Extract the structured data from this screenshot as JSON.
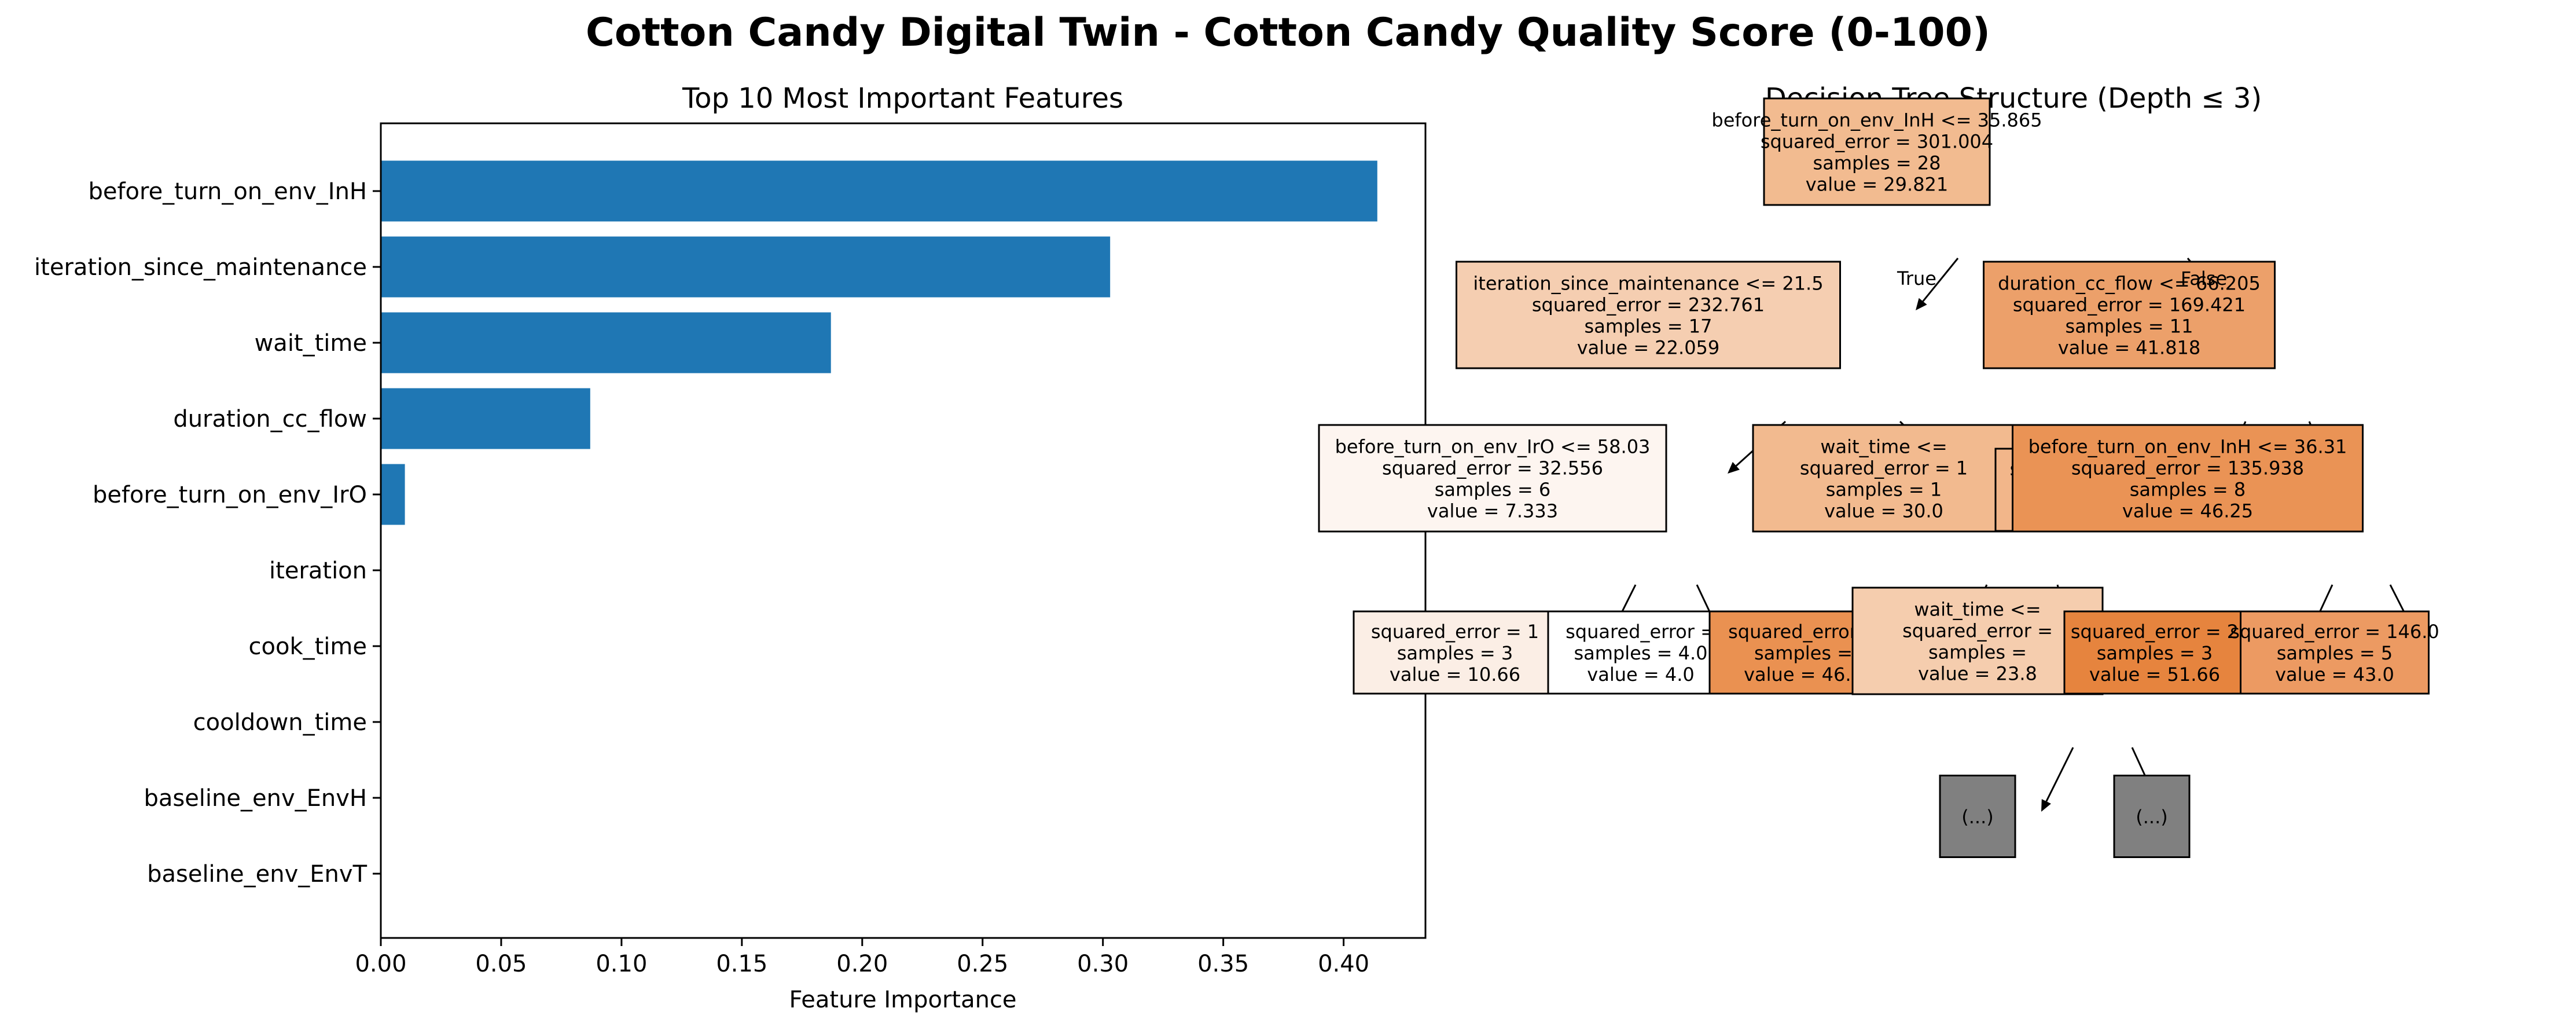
{
  "title": "Cotton Candy Digital Twin - Cotton Candy Quality Score (0-100)",
  "chart_data": [
    {
      "type": "bar",
      "orientation": "horizontal",
      "title": "Top 10 Most Important Features",
      "xlabel": "Feature Importance",
      "ylabel": "",
      "xlim": [
        0,
        0.434
      ],
      "xticks": [
        "0.00",
        "0.05",
        "0.10",
        "0.15",
        "0.20",
        "0.25",
        "0.30",
        "0.35",
        "0.40"
      ],
      "categories": [
        "before_turn_on_env_InH",
        "iteration_since_maintenance",
        "wait_time",
        "duration_cc_flow",
        "before_turn_on_env_IrO",
        "iteration",
        "cook_time",
        "cooldown_time",
        "baseline_env_EnvH",
        "baseline_env_EnvT"
      ],
      "values": [
        0.414,
        0.303,
        0.187,
        0.087,
        0.01,
        0,
        0,
        0,
        0,
        0
      ],
      "bar_color": "#1f77b4",
      "grid": false
    },
    {
      "type": "tree",
      "title": "Decision Tree Structure (Depth ≤ 3)",
      "edge_labels": {
        "true": "True",
        "false": "False"
      },
      "nodes": [
        {
          "id": "n0",
          "lines": [
            "before_turn_on_env_InH <= 35.865",
            "squared_error = 301.004",
            "samples = 28",
            "value = 29.821"
          ],
          "color": "#f2bb90"
        },
        {
          "id": "n1",
          "lines": [
            "iteration_since_maintenance <= 21.5",
            "squared_error = 232.761",
            "samples = 17",
            "value = 22.059"
          ],
          "color": "#f5ceb1"
        },
        {
          "id": "n2",
          "lines": [
            "duration_cc_flow <= 66.205",
            "squared_error = 169.421",
            "samples = 11",
            "value = 41.818"
          ],
          "color": "#eca06a"
        },
        {
          "id": "n3",
          "lines": [
            "before_turn_on_env_IrO <= 58.03",
            "squared_error = 32.556",
            "samples = 6",
            "value = 7.333"
          ],
          "color": "#fdf5f0"
        },
        {
          "id": "n4",
          "lines": [
            "wait_time <=",
            "squared_error = 1",
            "samples = 1",
            "value = 30.0"
          ],
          "color": "#f2ba8f"
        },
        {
          "id": "n5",
          "lines": [
            "squared_err",
            "sampl",
            "value"
          ],
          "color": "#f2b68a"
        },
        {
          "id": "n6",
          "lines": [
            "before_turn_on_env_InH <= 36.31",
            "squared_error = 135.938",
            "samples = 8",
            "value = 46.25"
          ],
          "color": "#ea9355"
        },
        {
          "id": "n7",
          "lines": [
            "squared_error = 1",
            "samples = 3",
            "value = 10.66"
          ],
          "color": "#fbeee5"
        },
        {
          "id": "n8",
          "lines": [
            "squared_error =",
            "samples = 4.0",
            "value = 4.0"
          ],
          "color": "#ffffff"
        },
        {
          "id": "n9",
          "lines": [
            "squared_error =",
            "samples =",
            "value = 46.6"
          ],
          "color": "#ea9151"
        },
        {
          "id": "n10",
          "lines": [
            "wait_time <=",
            "squared_error =",
            "samples =",
            "value = 23.8"
          ],
          "color": "#f5cdae"
        },
        {
          "id": "n11",
          "lines": [
            "squared_error = 2",
            "samples = 3",
            "value = 51.66"
          ],
          "color": "#e6843e"
        },
        {
          "id": "n12",
          "lines": [
            "squared_error = 146.0",
            "samples = 5",
            "value = 43.0"
          ],
          "color": "#ec9a62"
        },
        {
          "id": "n13",
          "lines": [
            "(...)"
          ],
          "color": "#808080"
        },
        {
          "id": "n14",
          "lines": [
            "(...)"
          ],
          "color": "#808080"
        }
      ]
    }
  ]
}
